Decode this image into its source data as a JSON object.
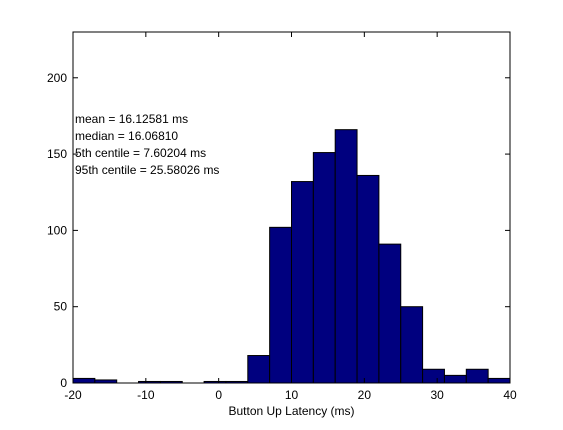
{
  "chart_data": {
    "type": "bar",
    "subtype": "histogram",
    "bin_width": 3,
    "bins": [
      {
        "x0": -20,
        "x1": -17,
        "count": 3
      },
      {
        "x0": -17,
        "x1": -14,
        "count": 2
      },
      {
        "x0": -14,
        "x1": -11,
        "count": 0
      },
      {
        "x0": -11,
        "x1": -8,
        "count": 1
      },
      {
        "x0": -8,
        "x1": -5,
        "count": 1
      },
      {
        "x0": -5,
        "x1": -2,
        "count": 0
      },
      {
        "x0": -2,
        "x1": 1,
        "count": 1
      },
      {
        "x0": 1,
        "x1": 4,
        "count": 1
      },
      {
        "x0": 4,
        "x1": 7,
        "count": 18
      },
      {
        "x0": 7,
        "x1": 10,
        "count": 102
      },
      {
        "x0": 10,
        "x1": 13,
        "count": 132
      },
      {
        "x0": 13,
        "x1": 16,
        "count": 151
      },
      {
        "x0": 16,
        "x1": 19,
        "count": 166
      },
      {
        "x0": 19,
        "x1": 22,
        "count": 136
      },
      {
        "x0": 22,
        "x1": 25,
        "count": 91
      },
      {
        "x0": 25,
        "x1": 28,
        "count": 50
      },
      {
        "x0": 28,
        "x1": 31,
        "count": 9
      },
      {
        "x0": 31,
        "x1": 34,
        "count": 5
      },
      {
        "x0": 34,
        "x1": 37,
        "count": 9
      },
      {
        "x0": 37,
        "x1": 40,
        "count": 3
      }
    ],
    "xlim": [
      -20,
      40
    ],
    "ylim": [
      0,
      230
    ],
    "xticks": [
      -20,
      -10,
      0,
      10,
      20,
      30,
      40
    ],
    "yticks": [
      0,
      50,
      100,
      150,
      200
    ],
    "xlabel": "Button Up Latency (ms)",
    "ylabel": "",
    "title": "",
    "grid": false,
    "colors": {
      "bar_fill": "#00007F",
      "bar_edge": "#000000",
      "axes": "#000000"
    },
    "annotations": [
      "mean = 16.12581 ms",
      "median = 16.06810",
      "5th centile = 7.60204 ms",
      "95th centile = 25.58026 ms"
    ]
  }
}
